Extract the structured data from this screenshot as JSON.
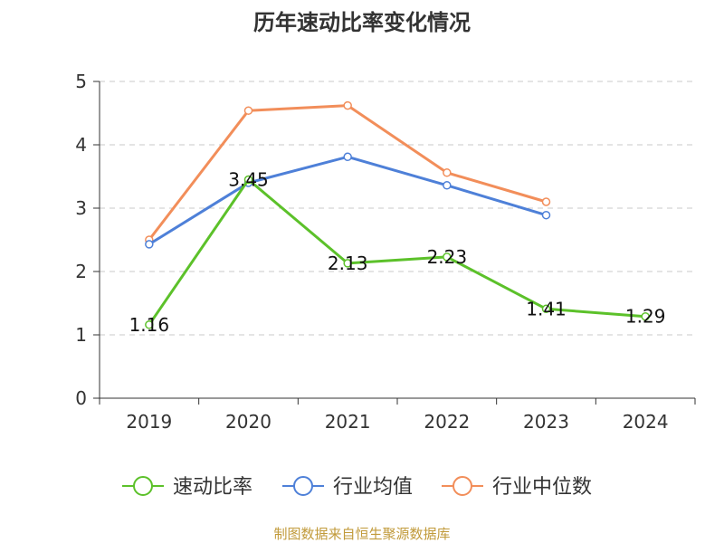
{
  "chart_data": {
    "type": "line",
    "title": "历年速动比率变化情况",
    "categories": [
      "2019",
      "2020",
      "2021",
      "2022",
      "2023",
      "2024"
    ],
    "ylim": [
      0,
      5
    ],
    "yticks": [
      0,
      1,
      2,
      3,
      4,
      5
    ],
    "grid": true,
    "legend_position": "bottom",
    "series": [
      {
        "name": "速动比率",
        "color": "#5cc12a",
        "values": [
          1.16,
          3.45,
          2.13,
          2.23,
          1.41,
          1.29
        ],
        "labels": [
          "1.16",
          "3.45",
          "2.13",
          "2.23",
          "1.41",
          "1.29"
        ]
      },
      {
        "name": "行业均值",
        "color": "#4e80d8",
        "values": [
          2.43,
          3.4,
          3.81,
          3.36,
          2.89,
          null
        ]
      },
      {
        "name": "行业中位数",
        "color": "#f28e5a",
        "values": [
          2.5,
          4.54,
          4.62,
          3.56,
          3.1,
          null
        ]
      }
    ]
  },
  "source_text": "制图数据来自恒生聚源数据库"
}
